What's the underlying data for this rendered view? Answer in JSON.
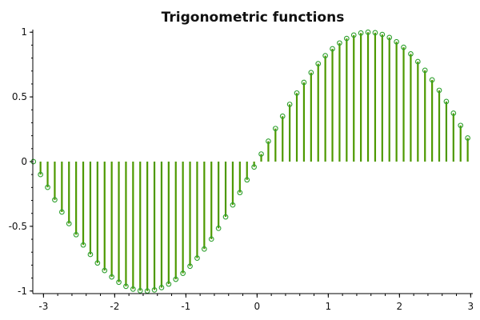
{
  "chart_data": {
    "type": "stem",
    "title": "Trigonometric functions",
    "xlabel": "",
    "ylabel": "",
    "xlim": [
      -3.15,
      3.03
    ],
    "ylim": [
      -1.02,
      1.02
    ],
    "x_ticks": [
      -3,
      -2,
      -1,
      0,
      1,
      2,
      3
    ],
    "x_tick_labels": [
      "-3",
      "-2",
      "-1",
      "0",
      "1",
      "2",
      "3"
    ],
    "y_ticks": [
      -1,
      -0.5,
      0,
      0.5,
      1
    ],
    "y_tick_labels": [
      "-1",
      "-0.5",
      "0",
      "0.5",
      "1"
    ],
    "grid": false,
    "stem_color": "#4d9900",
    "marker_color": "#2ea02e",
    "marker_style": "open-circle",
    "series": [
      {
        "function": "sin(x)",
        "x_start": -3.1416,
        "x_step": 0.1,
        "x": [
          -3.1416,
          -3.0416,
          -2.9416,
          -2.8416,
          -2.7416,
          -2.6416,
          -2.5416,
          -2.4416,
          -2.3416,
          -2.2416,
          -2.1416,
          -2.0416,
          -1.9416,
          -1.8416,
          -1.7416,
          -1.6416,
          -1.5416,
          -1.4416,
          -1.3416,
          -1.2416,
          -1.1416,
          -1.0416,
          -0.9416,
          -0.8416,
          -0.7416,
          -0.6416,
          -0.5416,
          -0.4416,
          -0.3416,
          -0.2416,
          -0.1416,
          -0.0416,
          0.0584,
          0.1584,
          0.2584,
          0.3584,
          0.4584,
          0.5584,
          0.6584,
          0.7584,
          0.8584,
          0.9584,
          1.0584,
          1.1584,
          1.2584,
          1.3584,
          1.4584,
          1.5584,
          1.6584,
          1.7584,
          1.8584,
          1.9584,
          2.0584,
          2.1584,
          2.2584,
          2.3584,
          2.4584,
          2.5584,
          2.6584,
          2.7584,
          2.8584,
          2.9584
        ],
        "y": [
          0,
          -0.0998,
          -0.1987,
          -0.2955,
          -0.3894,
          -0.4794,
          -0.5646,
          -0.6442,
          -0.7174,
          -0.7833,
          -0.8415,
          -0.8912,
          -0.932,
          -0.9636,
          -0.9854,
          -0.9975,
          -0.9996,
          -0.9917,
          -0.9738,
          -0.9463,
          -0.9093,
          -0.8632,
          -0.8085,
          -0.7457,
          -0.6755,
          -0.5985,
          -0.5155,
          -0.4274,
          -0.335,
          -0.2392,
          -0.1411,
          -0.0416,
          0.0584,
          0.1577,
          0.2555,
          0.3508,
          0.4425,
          0.5298,
          0.6119,
          0.6878,
          0.7568,
          0.8183,
          0.8716,
          0.9162,
          0.9516,
          0.9775,
          0.9937,
          0.9999,
          0.9962,
          0.9825,
          0.9589,
          0.9258,
          0.8835,
          0.8323,
          0.7728,
          0.7055,
          0.6313,
          0.5507,
          0.4646,
          0.3739,
          0.2794,
          0.1822
        ]
      }
    ]
  }
}
